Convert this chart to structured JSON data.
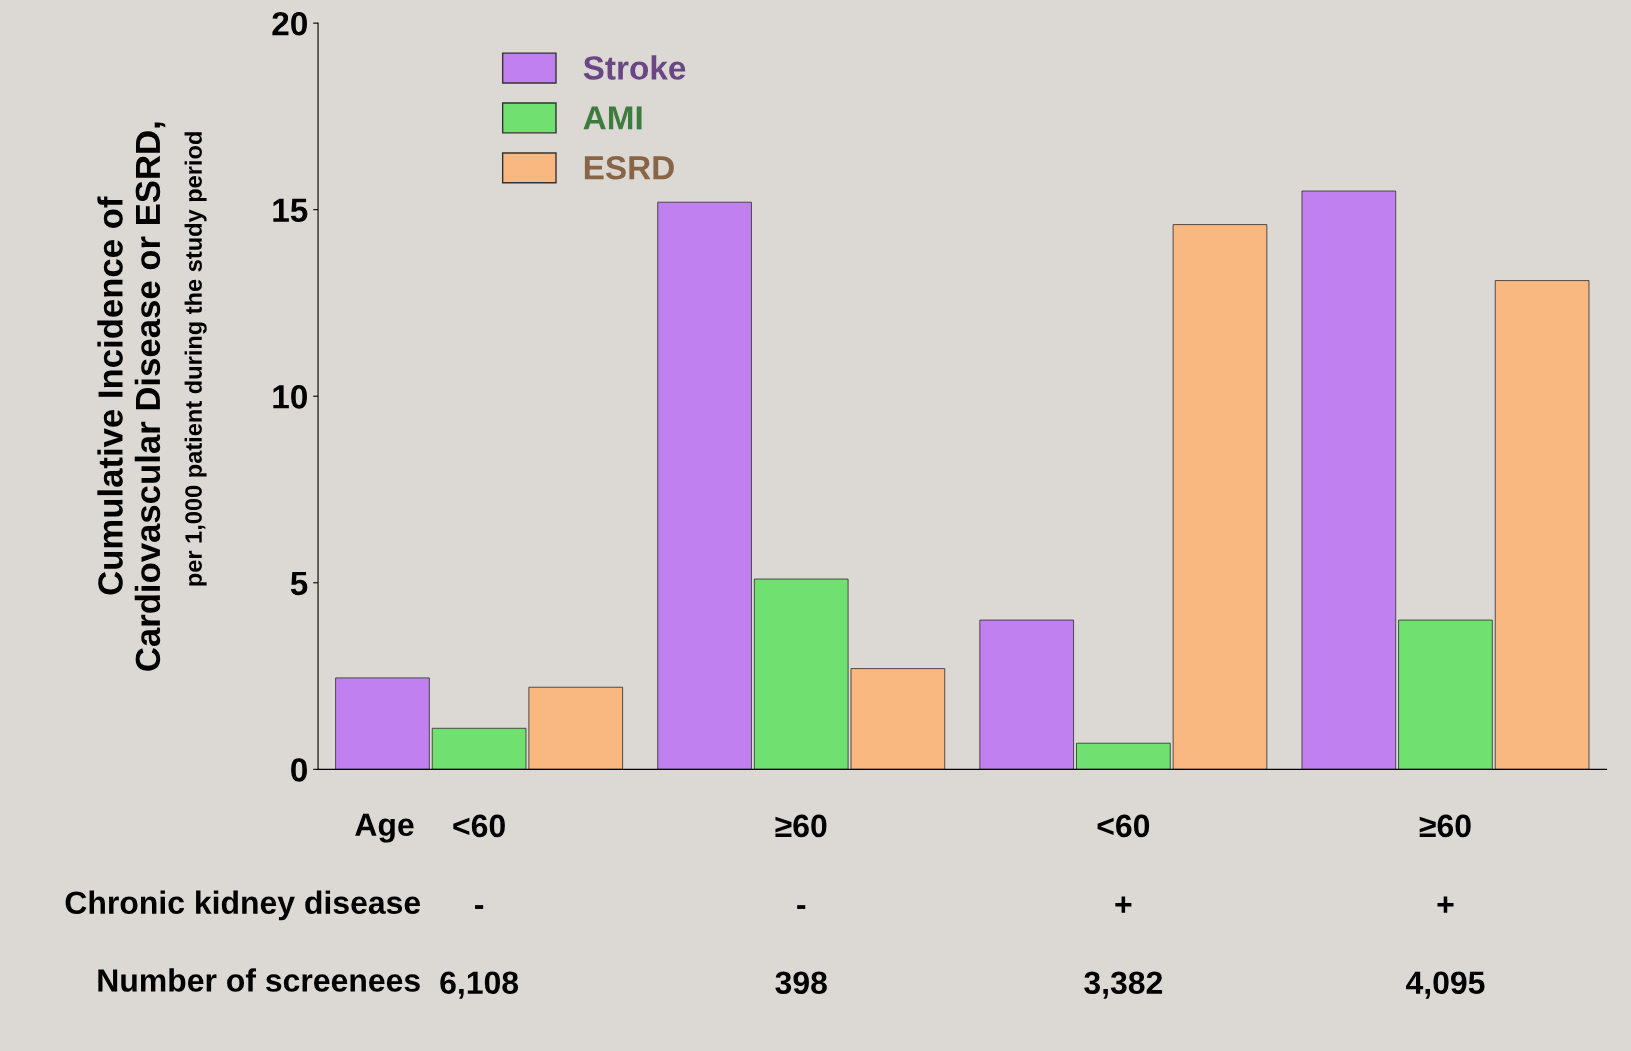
{
  "chart_data": {
    "type": "bar",
    "ylabel": "Cumulative Incidence of\nCardiovascular Disease or ESRD,",
    "categories": [
      "<60\n-\n6,108",
      "≥60\n-\n398",
      "<60\n+\n3,382",
      "≥60\n+\n4,095"
    ],
    "series": [
      {
        "name": "Stroke",
        "color": "#c080f0",
        "values": [
          2.45,
          15.2,
          4.0,
          15.5
        ]
      },
      {
        "name": "AMI",
        "color": "#70e070",
        "values": [
          1.1,
          5.1,
          0.7,
          4.0
        ]
      },
      {
        "name": "ESRD",
        "color": "#f8b880",
        "values": [
          2.2,
          2.7,
          14.6,
          13.1
        ]
      }
    ],
    "ylim": [
      0,
      20
    ],
    "yticks": [
      0,
      5,
      10,
      15,
      20
    ],
    "grid": false,
    "legend": "top left",
    "annotations": [
      "per 1,000 patient during the study period",
      "Age",
      "Chronic kidney disease",
      "Number of screenees"
    ]
  }
}
